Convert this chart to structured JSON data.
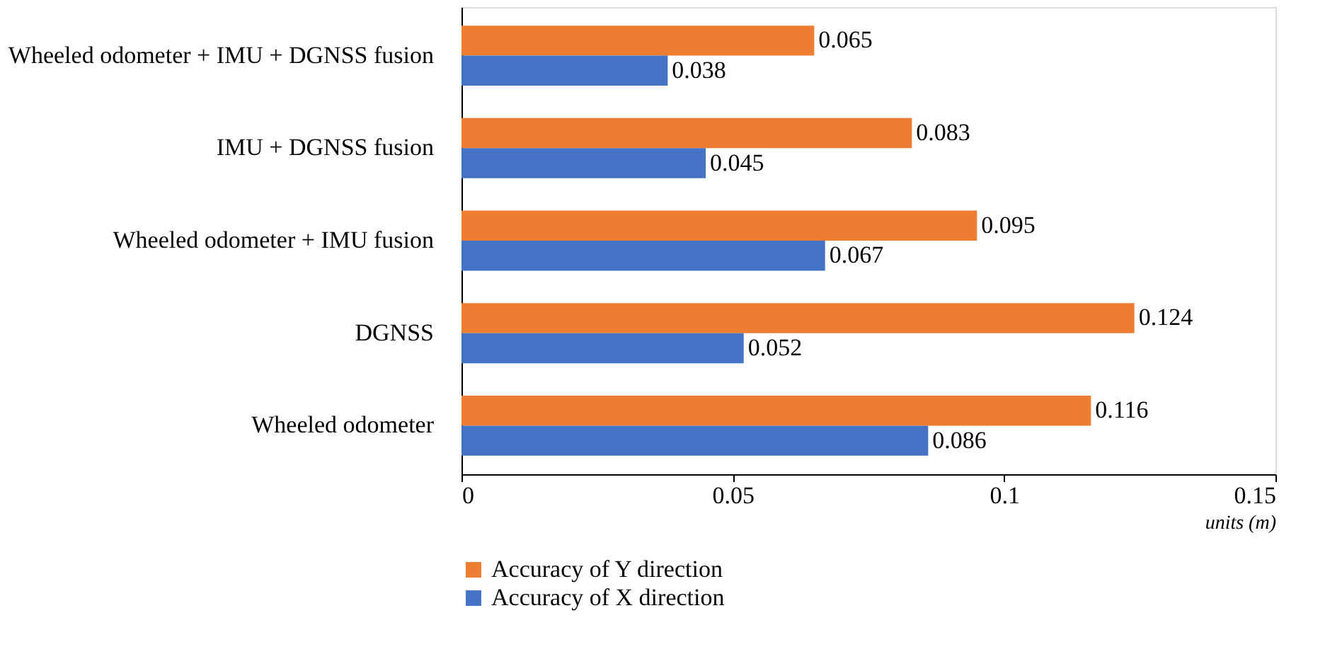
{
  "chart_data": {
    "type": "bar",
    "orientation": "horizontal",
    "categories": [
      "Wheeled odometer + IMU + DGNSS fusion",
      "IMU + DGNSS fusion",
      "Wheeled odometer + IMU fusion",
      "DGNSS",
      "Wheeled odometer"
    ],
    "series": [
      {
        "name": "Accuracy of Y direction",
        "color": "#ed7d31",
        "values": [
          0.065,
          0.083,
          0.095,
          0.124,
          0.116
        ]
      },
      {
        "name": "Accuracy of X direction",
        "color": "#4472c4",
        "values": [
          0.038,
          0.045,
          0.067,
          0.052,
          0.086
        ]
      }
    ],
    "xlim": [
      0,
      0.15
    ],
    "xticks": [
      0,
      0.05,
      0.1,
      0.15
    ],
    "xlabel": "units (m)",
    "data_labels": true,
    "legend": "bottom",
    "grid": false
  }
}
